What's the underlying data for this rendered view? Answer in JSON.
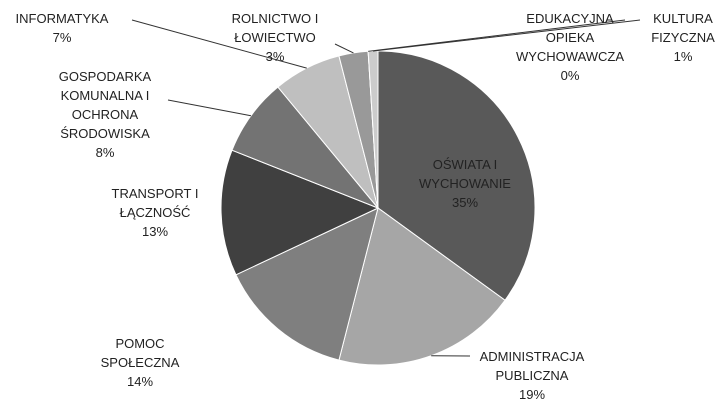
{
  "chart_data": {
    "type": "pie",
    "categories": [
      [
        "OŚWIATA I",
        "WYCHOWANIE"
      ],
      [
        "ADMINISTRACJA",
        "PUBLICZNA"
      ],
      [
        "POMOC",
        "SPOŁECZNA"
      ],
      [
        "TRANSPORT  I",
        "ŁĄCZNOŚĆ"
      ],
      [
        "GOSPODARKA",
        "KOMUNALNA  I",
        "OCHRONA",
        "ŚRODOWISKA"
      ],
      [
        "INFORMATYKA"
      ],
      [
        "ROLNICTWO  I",
        "ŁOWIECTWO"
      ],
      [
        "EDUKACYJNA",
        "OPIEKA",
        "WYCHOWAWCZA"
      ],
      [
        "KULTURA",
        "FIZYCZNA"
      ]
    ],
    "values": [
      35,
      19,
      14,
      13,
      8,
      7,
      3,
      0,
      1
    ],
    "value_labels": [
      "35%",
      "19%",
      "14%",
      "13%",
      "8%",
      "7%",
      "3%",
      "0%",
      "1%"
    ],
    "colors": [
      "#595959",
      "#a6a6a6",
      "#7f7f7f",
      "#404040",
      "#737373",
      "#bfbfbf",
      "#999999",
      "#dcdcdc",
      "#cccccc"
    ]
  }
}
